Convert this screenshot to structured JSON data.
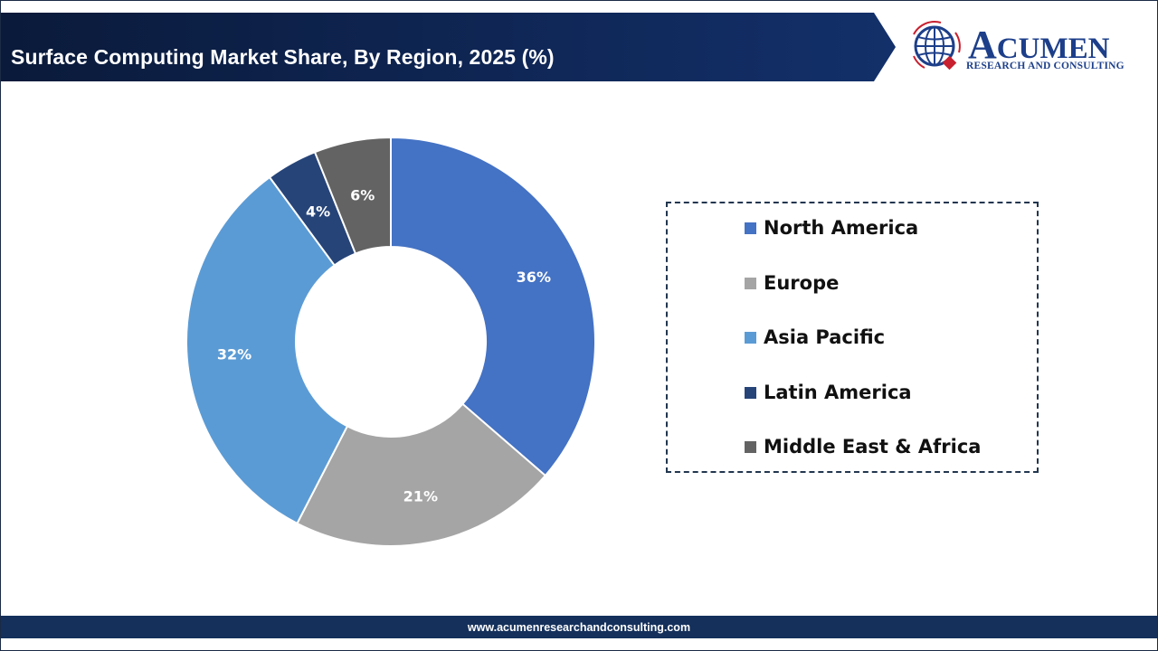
{
  "header": {
    "title": "Surface Computing Market Share, By Region, 2025 (%)"
  },
  "logo": {
    "name_initial": "A",
    "name_rest": "CUMEN",
    "tagline": "RESEARCH AND CONSULTING",
    "icon": "globe-icon"
  },
  "colors": {
    "banner_dark": "#0a1a3a",
    "banner_mid": "#13306a",
    "footer": "#14305b",
    "north_america": "#4472c4",
    "europe": "#a5a5a5",
    "asia_pacific": "#5b9bd5",
    "latin_america": "#264478",
    "middle_east_africa": "#636363"
  },
  "chart_data": {
    "type": "pie",
    "variant": "donut",
    "title": "Surface Computing Market Share, By Region, 2025 (%)",
    "categories": [
      "North America",
      "Europe",
      "Asia Pacific",
      "Latin America",
      "Middle East & Africa"
    ],
    "values": [
      36,
      21,
      32,
      4,
      6
    ],
    "labels": [
      "36%",
      "21%",
      "32%",
      "4%",
      "6%"
    ],
    "colors": [
      "#4472c4",
      "#a5a5a5",
      "#5b9bd5",
      "#264478",
      "#636363"
    ],
    "start_angle": "12 o'clock",
    "direction": "clockwise",
    "legend_position": "right",
    "unit": "%"
  },
  "legend": {
    "items": [
      {
        "label": "North America",
        "color": "#4472c4"
      },
      {
        "label": "Europe",
        "color": "#a5a5a5"
      },
      {
        "label": "Asia Pacific",
        "color": "#5b9bd5"
      },
      {
        "label": "Latin America",
        "color": "#264478"
      },
      {
        "label": "Middle East & Africa",
        "color": "#636363"
      }
    ]
  },
  "footer": {
    "url": "www.acumenresearchandconsulting.com"
  }
}
